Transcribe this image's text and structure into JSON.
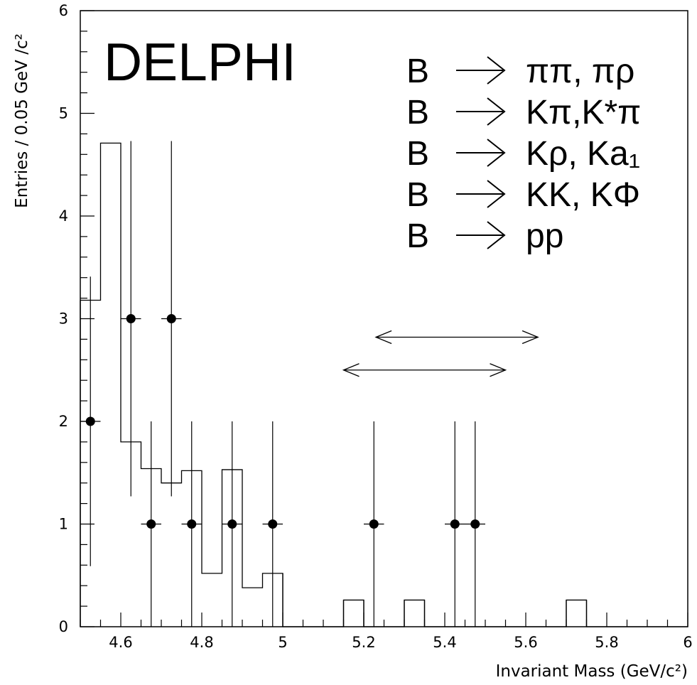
{
  "chart_data": {
    "type": "histogram",
    "xlabel": "Invariant Mass (GeV/c²)",
    "ylabel": "Entries / 0.05 GeV /c²",
    "xlim": [
      4.5,
      6.0
    ],
    "ylim": [
      0,
      6
    ],
    "x_ticks": [
      "4.6",
      "4.8",
      "5",
      "5.2",
      "5.4",
      "5.6",
      "5.8",
      "6"
    ],
    "y_ticks": [
      "0",
      "1",
      "2",
      "3",
      "4",
      "5",
      "6"
    ],
    "experiment_label": "DELPHI",
    "decay_channels": [
      {
        "parent": "B",
        "arrow": "→",
        "products": "ππ, πρ"
      },
      {
        "parent": "B",
        "arrow": "→",
        "products": "Kπ,K*π"
      },
      {
        "parent": "B",
        "arrow": "→",
        "products": "Kρ, Ka₁"
      },
      {
        "parent": "B",
        "arrow": "→",
        "products": "KK, KΦ"
      },
      {
        "parent": "B",
        "arrow": "→",
        "products": "pp"
      }
    ],
    "histogram": {
      "bin_edges": [
        4.5,
        4.55,
        4.6,
        4.65,
        4.7,
        4.75,
        4.8,
        4.85,
        4.9,
        4.95,
        5.0,
        5.05,
        5.1,
        5.15,
        5.2,
        5.25,
        5.3,
        5.35,
        5.4,
        5.45,
        5.5,
        5.55,
        5.6,
        5.65,
        5.7,
        5.75,
        5.8,
        5.85,
        5.9,
        5.95,
        6.0
      ],
      "values": [
        3.18,
        4.71,
        1.8,
        1.54,
        1.4,
        1.52,
        0.52,
        1.53,
        0.38,
        0.52,
        0,
        0,
        0,
        0.26,
        0,
        0,
        0.26,
        0,
        0,
        0,
        0,
        0,
        0,
        0,
        0.26,
        0,
        0,
        0,
        0,
        0
      ]
    },
    "data_points": [
      {
        "x": 4.525,
        "y": 2,
        "yerr_low": 1.41,
        "yerr_high": 1.41
      },
      {
        "x": 4.625,
        "y": 3,
        "yerr_low": 1.73,
        "yerr_high": 1.73
      },
      {
        "x": 4.675,
        "y": 1,
        "yerr_low": 1,
        "yerr_high": 1
      },
      {
        "x": 4.725,
        "y": 3,
        "yerr_low": 1.73,
        "yerr_high": 1.73
      },
      {
        "x": 4.775,
        "y": 1,
        "yerr_low": 1,
        "yerr_high": 1
      },
      {
        "x": 4.875,
        "y": 1,
        "yerr_low": 1,
        "yerr_high": 1
      },
      {
        "x": 4.975,
        "y": 1,
        "yerr_low": 1,
        "yerr_high": 1
      },
      {
        "x": 5.225,
        "y": 1,
        "yerr_low": 1,
        "yerr_high": 1
      },
      {
        "x": 5.425,
        "y": 1,
        "yerr_low": 1,
        "yerr_high": 1
      },
      {
        "x": 5.475,
        "y": 1,
        "yerr_low": 1,
        "yerr_high": 1
      }
    ],
    "mass_windows": [
      {
        "x_from": 5.23,
        "x_to": 5.63,
        "y": 2.82
      },
      {
        "x_from": 5.15,
        "x_to": 5.55,
        "y": 2.5
      }
    ]
  }
}
